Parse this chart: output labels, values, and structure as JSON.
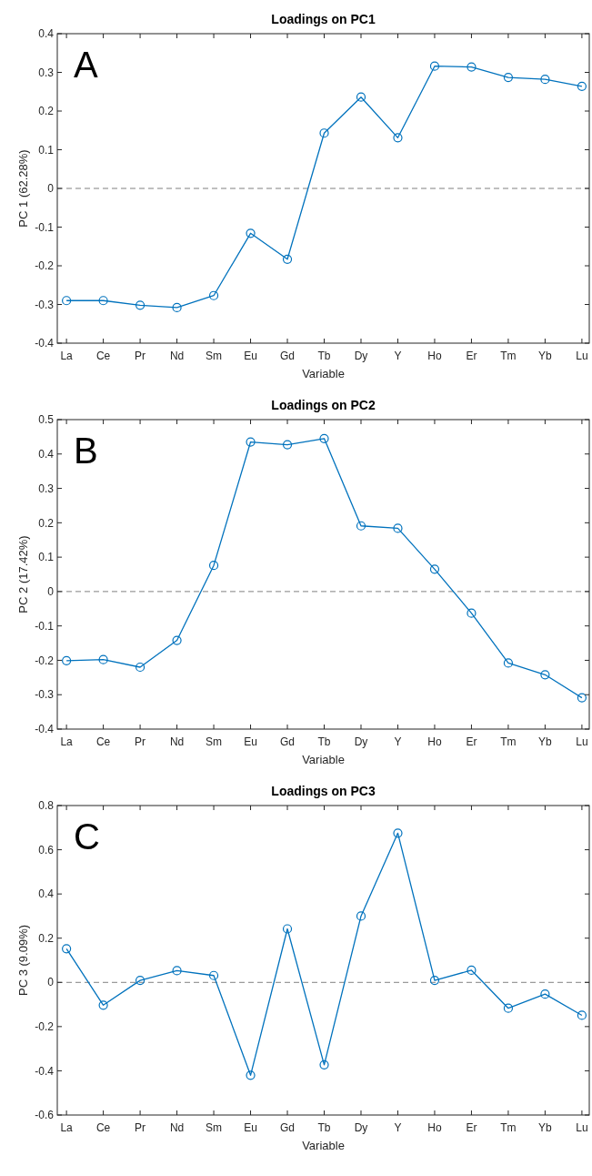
{
  "chart_data": [
    {
      "type": "line",
      "title": "Loadings on PC1",
      "xlabel": "Variable",
      "ylabel": "PC 1 (62.28%)",
      "annotations": [
        "A"
      ],
      "categories": [
        "La",
        "Ce",
        "Pr",
        "Nd",
        "Sm",
        "Eu",
        "Gd",
        "Tb",
        "Dy",
        "Y",
        "Ho",
        "Er",
        "Tm",
        "Yb",
        "Lu"
      ],
      "series": [
        {
          "color": "#0072bd",
          "values": [
            -0.29,
            -0.29,
            -0.302,
            -0.308,
            -0.277,
            -0.116,
            -0.183,
            0.143,
            0.236,
            0.131,
            0.316,
            0.314,
            0.287,
            0.282,
            0.264
          ]
        }
      ],
      "ylim": [
        -0.4,
        0.4
      ],
      "yticks": [
        -0.4,
        -0.3,
        -0.2,
        -0.1,
        0,
        0.1,
        0.2,
        0.3,
        0.4
      ],
      "marker": "circle",
      "line_style": "solid",
      "ref_lines": [
        {
          "axis": "y",
          "value": 0,
          "color": "#808080",
          "line_style": "dashed"
        }
      ]
    },
    {
      "type": "line",
      "title": "Loadings on PC2",
      "xlabel": "Variable",
      "ylabel": "PC 2 (17.42%)",
      "annotations": [
        "B"
      ],
      "categories": [
        "La",
        "Ce",
        "Pr",
        "Nd",
        "Sm",
        "Eu",
        "Gd",
        "Tb",
        "Dy",
        "Y",
        "Ho",
        "Er",
        "Tm",
        "Yb",
        "Lu"
      ],
      "series": [
        {
          "color": "#0072bd",
          "values": [
            -0.201,
            -0.198,
            -0.22,
            -0.142,
            0.076,
            0.435,
            0.427,
            0.445,
            0.191,
            0.184,
            0.065,
            -0.063,
            -0.208,
            -0.242,
            -0.309
          ]
        }
      ],
      "ylim": [
        -0.4,
        0.5
      ],
      "yticks": [
        -0.4,
        -0.3,
        -0.2,
        -0.1,
        0,
        0.1,
        0.2,
        0.3,
        0.4,
        0.5
      ],
      "marker": "circle",
      "line_style": "solid",
      "ref_lines": [
        {
          "axis": "y",
          "value": 0,
          "color": "#808080",
          "line_style": "dashed"
        }
      ]
    },
    {
      "type": "line",
      "title": "Loadings on PC3",
      "xlabel": "Variable",
      "ylabel": "PC 3 (9.09%)",
      "annotations": [
        "C"
      ],
      "categories": [
        "La",
        "Ce",
        "Pr",
        "Nd",
        "Sm",
        "Eu",
        "Gd",
        "Tb",
        "Dy",
        "Y",
        "Ho",
        "Er",
        "Tm",
        "Yb",
        "Lu"
      ],
      "series": [
        {
          "color": "#0072bd",
          "values": [
            0.152,
            -0.103,
            0.009,
            0.053,
            0.031,
            -0.42,
            0.242,
            -0.373,
            0.3,
            0.675,
            0.009,
            0.055,
            -0.117,
            -0.053,
            -0.149
          ]
        }
      ],
      "ylim": [
        -0.6,
        0.8
      ],
      "yticks": [
        -0.6,
        -0.4,
        -0.2,
        0,
        0.2,
        0.4,
        0.6,
        0.8
      ],
      "marker": "circle",
      "line_style": "solid",
      "ref_lines": [
        {
          "axis": "y",
          "value": 0,
          "color": "#808080",
          "line_style": "dashed"
        }
      ]
    }
  ]
}
